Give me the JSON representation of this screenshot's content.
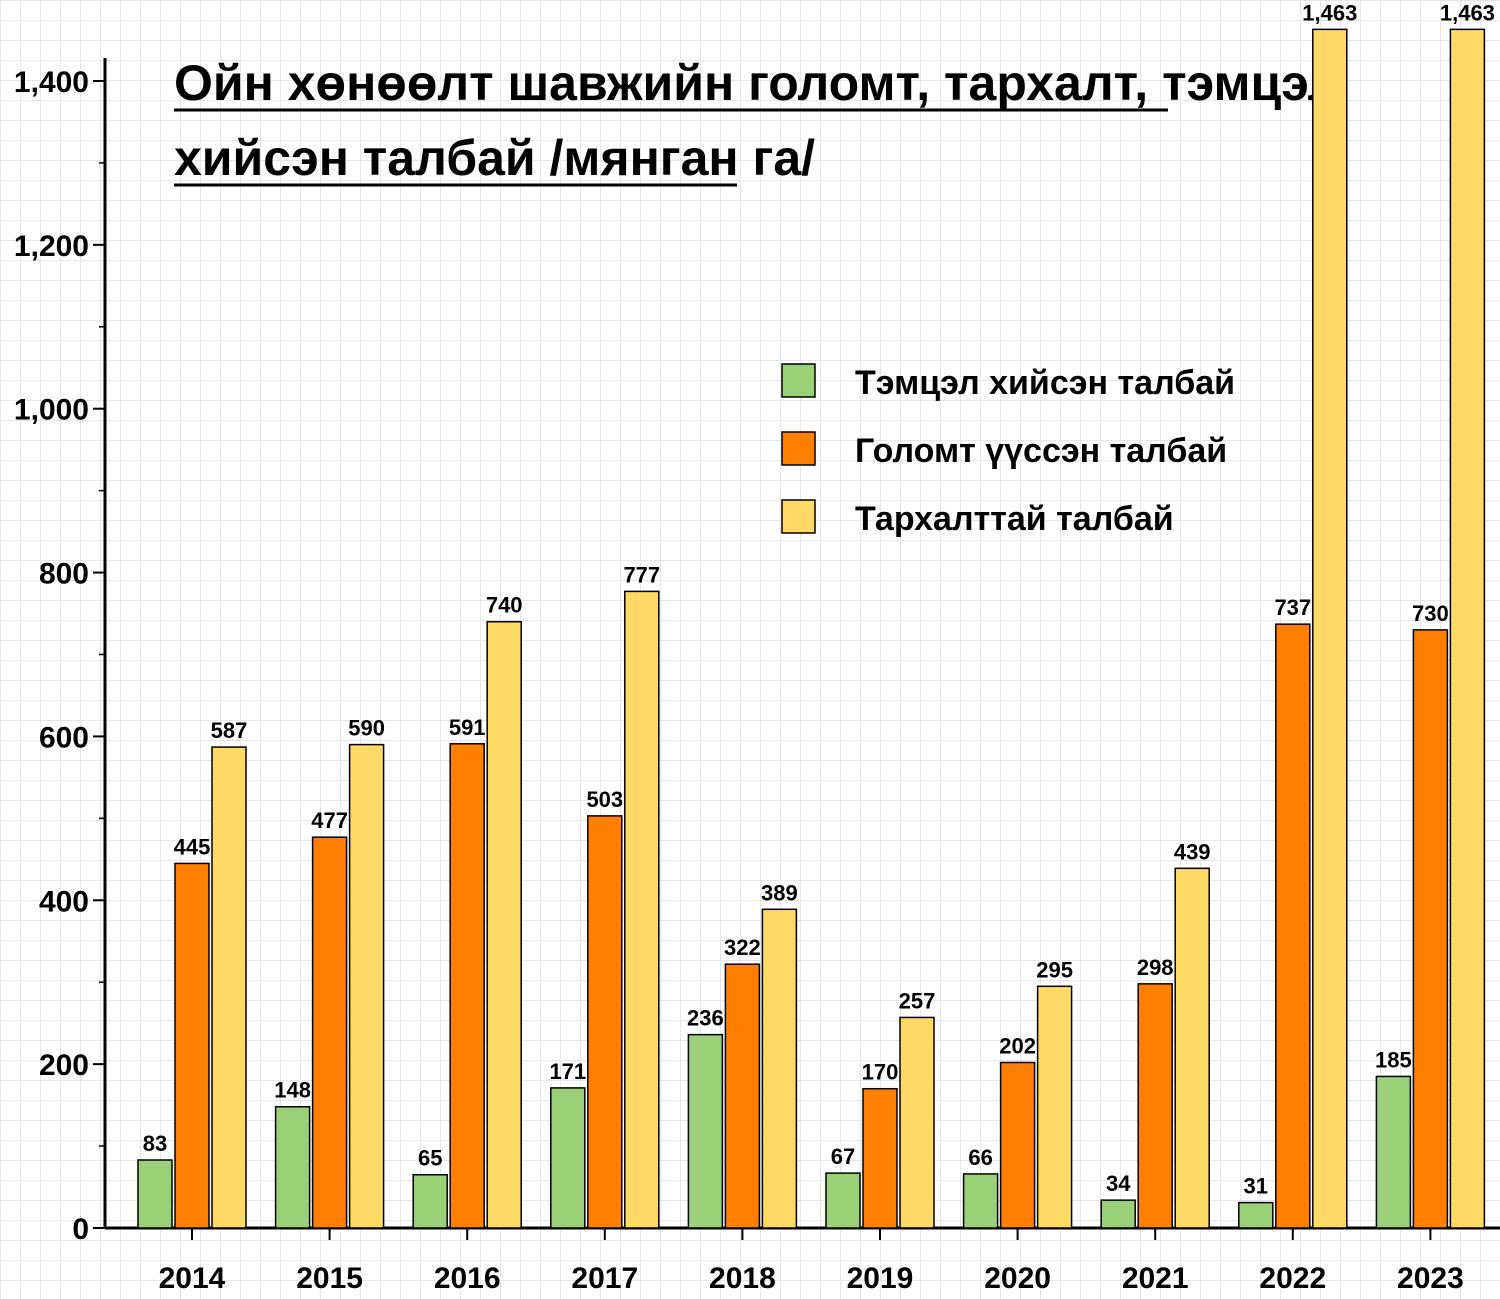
{
  "chart_data": {
    "type": "bar",
    "title_lines": [
      "Ойн хөнөөлт шавжийн голомт, тархалт, тэмцэл",
      "хийсэн талбай /мянган га/"
    ],
    "categories": [
      "2014",
      "2015",
      "2016",
      "2017",
      "2018",
      "2019",
      "2020",
      "2021",
      "2022",
      "2023"
    ],
    "series": [
      {
        "name": "Тэмцэл хийсэн талбай",
        "color": "#9ad077",
        "values": [
          83,
          148,
          65,
          171,
          236,
          67,
          66,
          34,
          31,
          185
        ]
      },
      {
        "name": "Голомт үүссэн талбай",
        "color": "#ff7f00",
        "values": [
          445,
          477,
          591,
          503,
          322,
          170,
          202,
          298,
          737,
          730
        ]
      },
      {
        "name": "Тархалттай талбай",
        "color": "#ffd966",
        "values": [
          587,
          590,
          740,
          777,
          389,
          257,
          295,
          439,
          1463,
          1463
        ]
      }
    ],
    "value_labels": [
      [
        "83",
        "148",
        "65",
        "171",
        "236",
        "67",
        "66",
        "34",
        "31",
        "185"
      ],
      [
        "445",
        "477",
        "591",
        "503",
        "322",
        "170",
        "202",
        "298",
        "737",
        "730"
      ],
      [
        "587",
        "590",
        "740",
        "777",
        "389",
        "257",
        "295",
        "439",
        "1,463",
        "1,463"
      ]
    ],
    "yticks": [
      0,
      200,
      400,
      600,
      800,
      1000,
      1200,
      1400
    ],
    "ytick_labels": [
      "0",
      "200",
      "400",
      "600",
      "800",
      "1,000",
      "1,200",
      "1,400"
    ],
    "ylim": [
      0,
      1400
    ],
    "legend_position": "upper-right-middle",
    "grid": true
  }
}
